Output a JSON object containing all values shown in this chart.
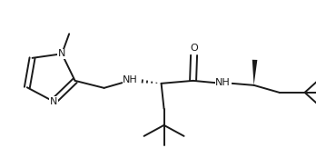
{
  "bg_color": "#ffffff",
  "line_color": "#1a1a1a",
  "lw": 1.4,
  "font_size": 8.0,
  "fig_width": 3.48,
  "fig_height": 1.74,
  "dpi": 100,
  "xlim": [
    0.0,
    1.0
  ],
  "ylim": [
    0.0,
    1.0
  ]
}
